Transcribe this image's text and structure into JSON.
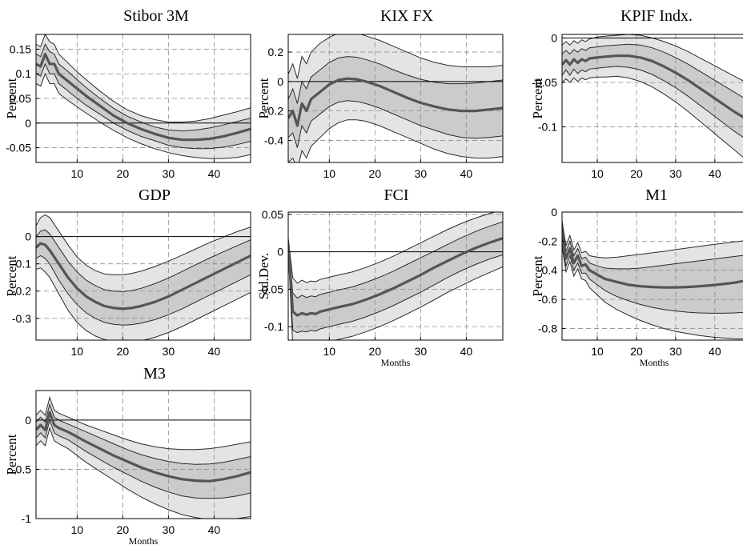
{
  "figure": {
    "colors": {
      "outer_band": "#e4e4e4",
      "inner_band": "#cbcbcb",
      "band_edge": "#2a2a2a",
      "median": "#555555",
      "zero_line": "#000000",
      "grid": "#8c8c8c"
    }
  },
  "chart_data": [
    {
      "type": "area",
      "title": "Stibor 3M",
      "ylabel": "Percent",
      "xlabel": "",
      "xlim": [
        1,
        48
      ],
      "ylim": [
        -0.08,
        0.18
      ],
      "xticks": [
        10,
        20,
        30,
        40
      ],
      "xtick_labels": [
        "10",
        "20",
        "30",
        "40"
      ],
      "yticks": [
        -0.05,
        0,
        0.05,
        0.1,
        0.15
      ],
      "ytick_labels": [
        "-0.05",
        "0",
        "0.05",
        "0.1",
        "0.15"
      ],
      "grid": true,
      "zero_line": true,
      "x": [
        1,
        2,
        3,
        4,
        5,
        6,
        8,
        10,
        12,
        15,
        18,
        21,
        24,
        27,
        30,
        33,
        36,
        39,
        42,
        45,
        48
      ],
      "median": [
        0.12,
        0.115,
        0.14,
        0.12,
        0.12,
        0.1,
        0.085,
        0.07,
        0.055,
        0.035,
        0.015,
        0.0,
        -0.012,
        -0.022,
        -0.03,
        -0.034,
        -0.034,
        -0.032,
        -0.027,
        -0.02,
        -0.012
      ],
      "band_68_upper": [
        0.14,
        0.135,
        0.16,
        0.145,
        0.14,
        0.12,
        0.105,
        0.088,
        0.072,
        0.05,
        0.03,
        0.014,
        0.002,
        -0.008,
        -0.014,
        -0.016,
        -0.014,
        -0.01,
        -0.004,
        0.003,
        0.01
      ],
      "band_68_lower": [
        0.1,
        0.095,
        0.12,
        0.1,
        0.1,
        0.08,
        0.065,
        0.05,
        0.036,
        0.018,
        0.0,
        -0.015,
        -0.027,
        -0.036,
        -0.045,
        -0.05,
        -0.052,
        -0.052,
        -0.049,
        -0.044,
        -0.037
      ],
      "band_90_upper": [
        0.16,
        0.155,
        0.18,
        0.165,
        0.16,
        0.14,
        0.122,
        0.104,
        0.088,
        0.065,
        0.044,
        0.027,
        0.015,
        0.007,
        0.002,
        0.002,
        0.004,
        0.009,
        0.016,
        0.023,
        0.031
      ],
      "band_90_lower": [
        0.08,
        0.075,
        0.1,
        0.08,
        0.08,
        0.06,
        0.046,
        0.033,
        0.02,
        0.002,
        -0.015,
        -0.03,
        -0.042,
        -0.052,
        -0.06,
        -0.066,
        -0.07,
        -0.072,
        -0.072,
        -0.07,
        -0.064
      ]
    },
    {
      "type": "area",
      "title": "KIX FX",
      "ylabel": "Percent",
      "xlabel": "",
      "xlim": [
        1,
        48
      ],
      "ylim": [
        -0.55,
        0.32
      ],
      "xticks": [
        10,
        20,
        30,
        40
      ],
      "xtick_labels": [
        "10",
        "20",
        "30",
        "40"
      ],
      "yticks": [
        -0.4,
        -0.2,
        0,
        0.2
      ],
      "ytick_labels": [
        "-0.4",
        "-0.2",
        "0",
        "0.2"
      ],
      "grid": true,
      "zero_line": true,
      "x": [
        1,
        2,
        3,
        4,
        5,
        6,
        8,
        10,
        12,
        14,
        16,
        18,
        21,
        24,
        27,
        30,
        33,
        36,
        39,
        42,
        45,
        48
      ],
      "median": [
        -0.25,
        -0.2,
        -0.3,
        -0.15,
        -0.2,
        -0.12,
        -0.07,
        -0.02,
        0.01,
        0.02,
        0.015,
        0.0,
        -0.03,
        -0.07,
        -0.11,
        -0.145,
        -0.17,
        -0.19,
        -0.2,
        -0.2,
        -0.19,
        -0.18
      ],
      "band_68_upper": [
        -0.12,
        -0.05,
        -0.15,
        0.0,
        -0.05,
        0.03,
        0.08,
        0.13,
        0.16,
        0.17,
        0.165,
        0.15,
        0.12,
        0.08,
        0.045,
        0.015,
        -0.005,
        -0.015,
        -0.015,
        -0.01,
        0.0,
        0.01
      ],
      "band_68_lower": [
        -0.38,
        -0.35,
        -0.45,
        -0.3,
        -0.35,
        -0.27,
        -0.22,
        -0.17,
        -0.14,
        -0.13,
        -0.135,
        -0.15,
        -0.18,
        -0.22,
        -0.26,
        -0.3,
        -0.33,
        -0.36,
        -0.38,
        -0.385,
        -0.38,
        -0.37
      ],
      "band_90_upper": [
        0.05,
        0.12,
        0.02,
        0.17,
        0.12,
        0.2,
        0.26,
        0.3,
        0.33,
        0.34,
        0.33,
        0.31,
        0.28,
        0.24,
        0.2,
        0.16,
        0.13,
        0.11,
        0.1,
        0.1,
        0.1,
        0.11
      ],
      "band_90_lower": [
        -0.55,
        -0.52,
        -0.6,
        -0.47,
        -0.52,
        -0.44,
        -0.38,
        -0.32,
        -0.28,
        -0.26,
        -0.26,
        -0.27,
        -0.3,
        -0.34,
        -0.38,
        -0.42,
        -0.46,
        -0.49,
        -0.51,
        -0.52,
        -0.52,
        -0.51
      ]
    },
    {
      "type": "area",
      "title": "KPIF Indx.",
      "ylabel": "Percent",
      "xlabel": "",
      "xlim": [
        1,
        48
      ],
      "ylim": [
        -0.14,
        0.004
      ],
      "xticks": [
        10,
        20,
        30,
        40
      ],
      "xtick_labels": [
        "10",
        "20",
        "30",
        "40"
      ],
      "yticks": [
        -0.1,
        -0.05,
        0
      ],
      "ytick_labels": [
        "-0.1",
        "-0.05",
        "0"
      ],
      "grid": true,
      "zero_line": true,
      "x": [
        1,
        2,
        3,
        4,
        5,
        6,
        7,
        8,
        10,
        12,
        15,
        18,
        21,
        24,
        27,
        30,
        33,
        36,
        39,
        42,
        45,
        48
      ],
      "median": [
        -0.03,
        -0.025,
        -0.03,
        -0.024,
        -0.028,
        -0.024,
        -0.026,
        -0.023,
        -0.022,
        -0.021,
        -0.02,
        -0.02,
        -0.022,
        -0.026,
        -0.032,
        -0.039,
        -0.047,
        -0.056,
        -0.065,
        -0.074,
        -0.083,
        -0.091
      ],
      "band_68_upper": [
        -0.018,
        -0.014,
        -0.018,
        -0.013,
        -0.016,
        -0.012,
        -0.014,
        -0.011,
        -0.01,
        -0.009,
        -0.008,
        -0.007,
        -0.008,
        -0.011,
        -0.016,
        -0.022,
        -0.029,
        -0.037,
        -0.045,
        -0.053,
        -0.061,
        -0.069
      ],
      "band_68_lower": [
        -0.042,
        -0.036,
        -0.042,
        -0.035,
        -0.04,
        -0.036,
        -0.038,
        -0.035,
        -0.034,
        -0.033,
        -0.032,
        -0.033,
        -0.036,
        -0.041,
        -0.048,
        -0.056,
        -0.065,
        -0.075,
        -0.085,
        -0.095,
        -0.105,
        -0.114
      ],
      "band_90_upper": [
        -0.008,
        -0.004,
        -0.008,
        -0.003,
        -0.006,
        -0.002,
        -0.004,
        -0.001,
        0.001,
        0.002,
        0.003,
        0.004,
        0.003,
        0.0,
        -0.004,
        -0.009,
        -0.015,
        -0.022,
        -0.029,
        -0.036,
        -0.043,
        -0.05
      ],
      "band_90_lower": [
        -0.05,
        -0.046,
        -0.05,
        -0.045,
        -0.049,
        -0.045,
        -0.047,
        -0.045,
        -0.044,
        -0.044,
        -0.043,
        -0.045,
        -0.049,
        -0.055,
        -0.063,
        -0.072,
        -0.082,
        -0.093,
        -0.104,
        -0.115,
        -0.126,
        -0.137
      ]
    },
    {
      "type": "area",
      "title": "GDP",
      "ylabel": "Percent",
      "xlabel": "",
      "xlim": [
        1,
        48
      ],
      "ylim": [
        -0.38,
        0.09
      ],
      "xticks": [
        10,
        20,
        30,
        40
      ],
      "xtick_labels": [
        "10",
        "20",
        "30",
        "40"
      ],
      "yticks": [
        -0.3,
        -0.2,
        -0.1,
        0
      ],
      "ytick_labels": [
        "-0.3",
        "-0.2",
        "-0.1",
        "0"
      ],
      "grid": true,
      "zero_line": true,
      "x": [
        1,
        2,
        3,
        4,
        6,
        8,
        10,
        12,
        14,
        16,
        18,
        20,
        22,
        24,
        27,
        30,
        33,
        36,
        39,
        42,
        45,
        48
      ],
      "median": [
        -0.04,
        -0.025,
        -0.03,
        -0.05,
        -0.1,
        -0.15,
        -0.19,
        -0.22,
        -0.24,
        -0.255,
        -0.262,
        -0.265,
        -0.262,
        -0.255,
        -0.24,
        -0.22,
        -0.195,
        -0.17,
        -0.145,
        -0.12,
        -0.095,
        -0.07
      ],
      "band_68_upper": [
        0.0,
        0.02,
        0.025,
        0.01,
        -0.04,
        -0.09,
        -0.13,
        -0.16,
        -0.18,
        -0.195,
        -0.2,
        -0.202,
        -0.198,
        -0.19,
        -0.173,
        -0.152,
        -0.128,
        -0.103,
        -0.079,
        -0.056,
        -0.034,
        -0.012
      ],
      "band_68_lower": [
        -0.08,
        -0.07,
        -0.08,
        -0.1,
        -0.16,
        -0.21,
        -0.25,
        -0.28,
        -0.3,
        -0.315,
        -0.322,
        -0.325,
        -0.323,
        -0.318,
        -0.305,
        -0.287,
        -0.265,
        -0.24,
        -0.215,
        -0.19,
        -0.165,
        -0.14
      ],
      "band_90_upper": [
        0.04,
        0.07,
        0.08,
        0.07,
        0.02,
        -0.03,
        -0.075,
        -0.105,
        -0.125,
        -0.137,
        -0.14,
        -0.14,
        -0.135,
        -0.127,
        -0.11,
        -0.09,
        -0.068,
        -0.045,
        -0.022,
        -0.002,
        0.018,
        0.035
      ],
      "band_90_lower": [
        -0.12,
        -0.115,
        -0.13,
        -0.15,
        -0.21,
        -0.27,
        -0.315,
        -0.345,
        -0.365,
        -0.378,
        -0.385,
        -0.39,
        -0.388,
        -0.383,
        -0.37,
        -0.352,
        -0.33,
        -0.305,
        -0.28,
        -0.255,
        -0.23,
        -0.205
      ]
    },
    {
      "type": "area",
      "title": "FCI",
      "ylabel": "Std.Dev.",
      "xlabel": "Months",
      "xlim": [
        1,
        48
      ],
      "ylim": [
        -0.118,
        0.053
      ],
      "xticks": [
        10,
        20,
        30,
        40
      ],
      "xtick_labels": [
        "10",
        "20",
        "30",
        "40"
      ],
      "yticks": [
        -0.1,
        -0.05,
        0,
        0.05
      ],
      "ytick_labels": [
        "-0.1",
        "-0.05",
        "0",
        "0.05"
      ],
      "grid": true,
      "zero_line": true,
      "x": [
        1,
        2,
        3,
        4,
        5,
        6,
        7,
        8,
        10,
        12,
        15,
        18,
        21,
        24,
        27,
        30,
        33,
        36,
        39,
        42,
        45,
        48
      ],
      "median": [
        0.01,
        -0.08,
        -0.085,
        -0.082,
        -0.084,
        -0.082,
        -0.083,
        -0.08,
        -0.077,
        -0.074,
        -0.07,
        -0.064,
        -0.057,
        -0.049,
        -0.04,
        -0.031,
        -0.021,
        -0.012,
        -0.003,
        0.005,
        0.012,
        0.018
      ],
      "band_68_upper": [
        0.015,
        -0.055,
        -0.062,
        -0.058,
        -0.061,
        -0.059,
        -0.06,
        -0.057,
        -0.054,
        -0.051,
        -0.047,
        -0.041,
        -0.034,
        -0.026,
        -0.017,
        -0.008,
        0.001,
        0.01,
        0.019,
        0.027,
        0.034,
        0.04
      ],
      "band_68_lower": [
        0.005,
        -0.105,
        -0.108,
        -0.106,
        -0.107,
        -0.105,
        -0.106,
        -0.103,
        -0.1,
        -0.097,
        -0.093,
        -0.087,
        -0.08,
        -0.072,
        -0.063,
        -0.054,
        -0.044,
        -0.034,
        -0.025,
        -0.017,
        -0.01,
        -0.004
      ],
      "band_90_upper": [
        0.018,
        -0.035,
        -0.042,
        -0.038,
        -0.041,
        -0.039,
        -0.04,
        -0.037,
        -0.034,
        -0.031,
        -0.027,
        -0.021,
        -0.014,
        -0.006,
        0.003,
        0.012,
        0.021,
        0.03,
        0.038,
        0.045,
        0.051,
        0.056
      ],
      "band_90_lower": [
        0.002,
        -0.125,
        -0.128,
        -0.126,
        -0.127,
        -0.125,
        -0.126,
        -0.123,
        -0.12,
        -0.117,
        -0.113,
        -0.107,
        -0.1,
        -0.092,
        -0.083,
        -0.074,
        -0.064,
        -0.054,
        -0.045,
        -0.036,
        -0.028,
        -0.02
      ]
    },
    {
      "type": "area",
      "title": "M1",
      "ylabel": "Percent",
      "xlabel": "Months",
      "xlim": [
        1,
        48
      ],
      "ylim": [
        -0.88,
        0.0
      ],
      "xticks": [
        10,
        20,
        30,
        40
      ],
      "xtick_labels": [
        "10",
        "20",
        "30",
        "40"
      ],
      "yticks": [
        -0.8,
        -0.6,
        -0.4,
        -0.2,
        0
      ],
      "ytick_labels": [
        "-0.8",
        "-0.6",
        "-0.4",
        "-0.2",
        "0"
      ],
      "grid": true,
      "zero_line": true,
      "x": [
        1,
        2,
        3,
        4,
        5,
        6,
        7,
        8,
        10,
        12,
        15,
        18,
        21,
        24,
        27,
        30,
        33,
        36,
        39,
        42,
        45,
        48
      ],
      "median": [
        -0.15,
        -0.32,
        -0.25,
        -0.35,
        -0.3,
        -0.37,
        -0.36,
        -0.4,
        -0.43,
        -0.46,
        -0.48,
        -0.5,
        -0.51,
        -0.515,
        -0.518,
        -0.518,
        -0.515,
        -0.51,
        -0.503,
        -0.495,
        -0.485,
        -0.47
      ],
      "band_68_upper": [
        -0.1,
        -0.27,
        -0.2,
        -0.3,
        -0.25,
        -0.32,
        -0.31,
        -0.35,
        -0.37,
        -0.385,
        -0.39,
        -0.39,
        -0.385,
        -0.375,
        -0.365,
        -0.355,
        -0.345,
        -0.335,
        -0.325,
        -0.315,
        -0.305,
        -0.295
      ],
      "band_68_lower": [
        -0.2,
        -0.37,
        -0.3,
        -0.4,
        -0.35,
        -0.42,
        -0.42,
        -0.46,
        -0.5,
        -0.54,
        -0.58,
        -0.61,
        -0.635,
        -0.655,
        -0.67,
        -0.68,
        -0.688,
        -0.693,
        -0.695,
        -0.695,
        -0.693,
        -0.688
      ],
      "band_90_upper": [
        -0.06,
        -0.23,
        -0.16,
        -0.26,
        -0.21,
        -0.28,
        -0.27,
        -0.3,
        -0.31,
        -0.315,
        -0.31,
        -0.3,
        -0.29,
        -0.28,
        -0.27,
        -0.258,
        -0.247,
        -0.236,
        -0.225,
        -0.215,
        -0.205,
        -0.195
      ],
      "band_90_lower": [
        -0.24,
        -0.41,
        -0.34,
        -0.44,
        -0.39,
        -0.46,
        -0.47,
        -0.52,
        -0.57,
        -0.62,
        -0.67,
        -0.71,
        -0.745,
        -0.775,
        -0.8,
        -0.82,
        -0.835,
        -0.848,
        -0.858,
        -0.865,
        -0.87,
        -0.873
      ]
    },
    {
      "type": "area",
      "title": "M3",
      "ylabel": "Percent",
      "xlabel": "Months",
      "xlim": [
        1,
        48
      ],
      "ylim": [
        -1.0,
        0.3
      ],
      "xticks": [
        10,
        20,
        30,
        40
      ],
      "xtick_labels": [
        "10",
        "20",
        "30",
        "40"
      ],
      "yticks": [
        -1,
        -0.5,
        0
      ],
      "ytick_labels": [
        "-1",
        "-0.5",
        "0"
      ],
      "grid": true,
      "zero_line": true,
      "x": [
        1,
        2,
        3,
        4,
        5,
        6,
        8,
        10,
        12,
        15,
        18,
        21,
        24,
        27,
        30,
        33,
        36,
        39,
        42,
        45,
        48
      ],
      "median": [
        -0.1,
        -0.05,
        -0.1,
        0.08,
        -0.05,
        -0.08,
        -0.12,
        -0.17,
        -0.22,
        -0.29,
        -0.36,
        -0.42,
        -0.48,
        -0.53,
        -0.57,
        -0.6,
        -0.615,
        -0.62,
        -0.6,
        -0.57,
        -0.53
      ],
      "band_68_upper": [
        -0.02,
        0.03,
        -0.02,
        0.16,
        0.03,
        0.0,
        -0.04,
        -0.08,
        -0.12,
        -0.18,
        -0.24,
        -0.3,
        -0.35,
        -0.39,
        -0.42,
        -0.44,
        -0.45,
        -0.445,
        -0.43,
        -0.4,
        -0.37
      ],
      "band_68_lower": [
        -0.18,
        -0.13,
        -0.18,
        0.0,
        -0.13,
        -0.16,
        -0.2,
        -0.26,
        -0.32,
        -0.4,
        -0.48,
        -0.55,
        -0.62,
        -0.68,
        -0.73,
        -0.77,
        -0.79,
        -0.795,
        -0.79,
        -0.77,
        -0.74
      ],
      "band_90_upper": [
        0.05,
        0.1,
        0.05,
        0.23,
        0.1,
        0.07,
        0.03,
        -0.01,
        -0.05,
        -0.1,
        -0.15,
        -0.2,
        -0.24,
        -0.27,
        -0.29,
        -0.3,
        -0.3,
        -0.29,
        -0.27,
        -0.245,
        -0.22
      ],
      "band_90_lower": [
        -0.26,
        -0.21,
        -0.26,
        -0.08,
        -0.21,
        -0.24,
        -0.29,
        -0.36,
        -0.43,
        -0.52,
        -0.61,
        -0.7,
        -0.78,
        -0.85,
        -0.91,
        -0.96,
        -0.99,
        -1.01,
        -1.01,
        -1.0,
        -0.98
      ]
    }
  ]
}
